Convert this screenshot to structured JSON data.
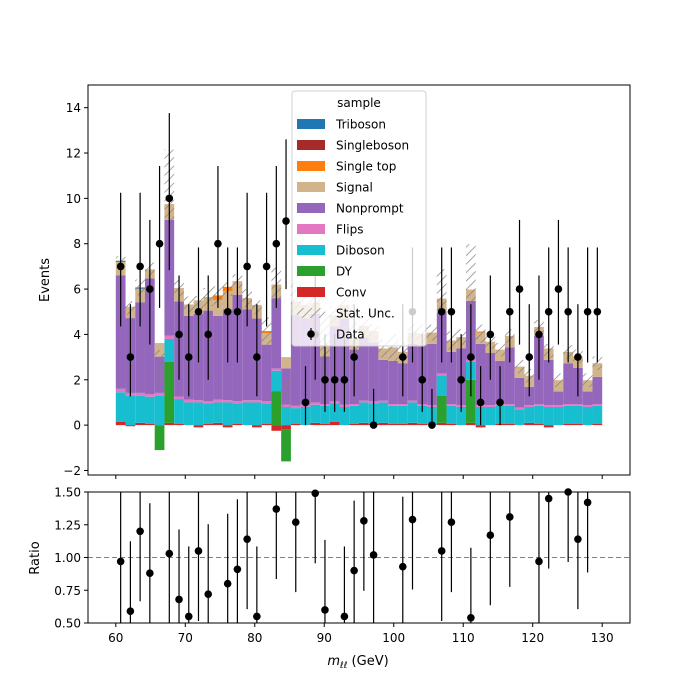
{
  "chart_data": {
    "type": "bar",
    "stacked": true,
    "x_range": [
      56,
      134
    ],
    "bin_width": 1.4,
    "x_ticks": [
      60,
      70,
      80,
      90,
      100,
      110,
      120,
      130
    ],
    "top_panel": {
      "ylabel": "Events",
      "ylim": [
        -2.2,
        15
      ],
      "y_ticks": [
        -2,
        0,
        2,
        4,
        6,
        8,
        10,
        12,
        14
      ]
    },
    "bottom_panel": {
      "ylabel": "Ratio",
      "ylim": [
        0.5,
        1.5
      ],
      "y_ticks": [
        0.5,
        0.75,
        1.0,
        1.25,
        1.5
      ],
      "y_tick_labels": [
        "0.50",
        "0.75",
        "1.00",
        "1.25",
        "1.50"
      ],
      "reference_line": 1.0
    },
    "xlabel_main": "m",
    "xlabel_sub": "ℓℓ",
    "xlabel_unit": " (GeV)",
    "legend": {
      "title": "sample",
      "placement": "top-center",
      "entries": [
        "Triboson",
        "Singleboson",
        "Single top",
        "Signal",
        "Nonprompt",
        "Flips",
        "Diboson",
        "DY",
        "Conv",
        "Stat. Unc.",
        "Data"
      ]
    },
    "bin_centers": [
      60.7,
      62.1,
      63.5,
      64.9,
      66.3,
      67.7,
      69.1,
      70.5,
      71.9,
      73.3,
      74.7,
      76.1,
      77.5,
      78.9,
      80.3,
      81.7,
      83.1,
      84.5,
      85.9,
      87.3,
      88.7,
      90.1,
      91.5,
      92.9,
      94.3,
      95.7,
      97.1,
      98.5,
      99.9,
      101.3,
      102.7,
      104.1,
      105.5,
      106.9,
      108.3,
      109.7,
      111.1,
      112.5,
      113.9,
      115.3,
      116.7,
      118.1,
      119.5,
      120.9,
      122.3,
      123.7,
      125.1,
      126.5,
      127.9,
      129.3
    ],
    "series": [
      {
        "name": "Conv",
        "color": "#d62728",
        "values": [
          0.15,
          -0.05,
          0.1,
          0.05,
          0,
          0.1,
          0.05,
          0,
          -0.1,
          0.05,
          0.1,
          -0.1,
          0.05,
          0,
          -0.1,
          0.05,
          -0.25,
          -0.2,
          0.05,
          0,
          0.1,
          0.05,
          0.15,
          0,
          0.05,
          0.1,
          0.05,
          0.1,
          0.05,
          0.05,
          0.1,
          0.05,
          0,
          0.1,
          0.05,
          0,
          0.1,
          -0.1,
          0,
          0.05,
          0.05,
          0,
          0.1,
          0.05,
          -0.1,
          0,
          0.05,
          0.05,
          0,
          0.05
        ]
      },
      {
        "name": "DY",
        "color": "#2ca02c",
        "values": [
          0,
          0,
          0,
          0,
          -1.1,
          2.7,
          0,
          0,
          0,
          0,
          0,
          0,
          0,
          0,
          0,
          0,
          1.5,
          -1.4,
          0,
          0,
          0,
          0,
          0,
          0,
          0,
          0,
          0,
          0,
          0,
          0,
          0,
          0,
          0,
          1.2,
          0,
          0,
          1.9,
          0,
          0,
          0,
          0,
          0,
          0,
          0,
          0,
          0,
          0,
          0,
          0,
          0
        ]
      },
      {
        "name": "Diboson",
        "color": "#17becf",
        "values": [
          1.3,
          1.3,
          1.2,
          1.2,
          1.3,
          1.0,
          1.1,
          1.0,
          1.0,
          0.9,
          0.9,
          1.0,
          0.9,
          1.0,
          1.0,
          0.9,
          0.9,
          0.8,
          0.7,
          0.8,
          0.8,
          0.8,
          0.8,
          0.8,
          0.8,
          0.9,
          0.9,
          0.9,
          0.8,
          0.8,
          0.9,
          0.8,
          0.8,
          0.9,
          0.8,
          0.8,
          0.8,
          0.8,
          0.8,
          0.8,
          0.8,
          0.7,
          0.7,
          0.8,
          0.8,
          0.8,
          0.8,
          0.8,
          0.8,
          0.8
        ]
      },
      {
        "name": "Flips",
        "color": "#e377c2",
        "values": [
          0.15,
          0.12,
          0.12,
          0.12,
          0.12,
          0.15,
          0.1,
          0.12,
          0.1,
          0.1,
          0.12,
          0.1,
          0.1,
          0.1,
          0.1,
          0.1,
          0.1,
          0.1,
          0.1,
          0.1,
          0.1,
          0.08,
          0.1,
          0.1,
          0.08,
          0.08,
          0.1,
          0.08,
          0.08,
          0.08,
          0.08,
          0.08,
          0.08,
          0.08,
          0.08,
          0.08,
          0.08,
          0.08,
          0.08,
          0.08,
          0.08,
          0.08,
          0.08,
          0.08,
          0.08,
          0.08,
          0.08,
          0.08,
          0.08,
          0.08
        ]
      },
      {
        "name": "Nonprompt",
        "color": "#9467bd",
        "values": [
          5.0,
          3.3,
          4.0,
          5.1,
          1.6,
          5.1,
          4.2,
          3.7,
          3.8,
          4.0,
          3.7,
          4.0,
          4.7,
          4.0,
          3.6,
          2.5,
          3.1,
          1.6,
          4.0,
          3.8,
          3.9,
          2.1,
          3.3,
          3.8,
          2.4,
          2.8,
          2.6,
          1.8,
          1.9,
          1.8,
          2.5,
          2.6,
          2.7,
          2.7,
          2.3,
          2.5,
          2.6,
          2.7,
          2.3,
          1.9,
          2.5,
          1.3,
          0.8,
          3.0,
          2.0,
          0.6,
          1.8,
          1.6,
          0.6,
          1.2
        ]
      },
      {
        "name": "Signal",
        "color": "#d2b48c",
        "values": [
          0.6,
          0.5,
          0.6,
          0.4,
          0.6,
          0.7,
          0.6,
          0.5,
          0.6,
          0.6,
          0.7,
          0.8,
          0.6,
          0.5,
          0.6,
          0.5,
          0.6,
          0.5,
          0.6,
          0.6,
          0.5,
          0.5,
          0.5,
          0.6,
          0.5,
          0.5,
          0.5,
          0.5,
          0.6,
          0.5,
          0.5,
          0.5,
          0.5,
          0.6,
          0.5,
          0.5,
          0.5,
          0.5,
          0.5,
          0.5,
          0.5,
          0.5,
          0.5,
          0.4,
          0.5,
          0.5,
          0.5,
          0.5,
          0.5,
          0.6
        ]
      },
      {
        "name": "Single top",
        "color": "#ff7f0e",
        "values": [
          0,
          0,
          0,
          0,
          0,
          0,
          0,
          0,
          0,
          0,
          0.2,
          0.2,
          0,
          0,
          0,
          0.1,
          0,
          0,
          0,
          0,
          0,
          0,
          0,
          0,
          0,
          0,
          0,
          0,
          0,
          0,
          0,
          0,
          0,
          0,
          0,
          0,
          0,
          0.05,
          0,
          0,
          0,
          0,
          0,
          0,
          0,
          0,
          0,
          0,
          0,
          0
        ]
      },
      {
        "name": "Singleboson",
        "color": "#a52a2a",
        "values": [
          0,
          0,
          0,
          0,
          0,
          0,
          0,
          0,
          0,
          0,
          0,
          0,
          0,
          0,
          0,
          0,
          0,
          0,
          0,
          0,
          0,
          0,
          0,
          0,
          0,
          0,
          0,
          0,
          0,
          0,
          0,
          0,
          0,
          0,
          0,
          0,
          0,
          0,
          0,
          0,
          0,
          0,
          0,
          0,
          0,
          0,
          0,
          0,
          0,
          0
        ]
      },
      {
        "name": "Triboson",
        "color": "#1f77b4",
        "values": [
          0.05,
          0,
          0.05,
          0,
          0,
          0,
          0,
          0,
          0,
          0,
          0,
          0,
          0,
          0,
          0,
          0,
          0,
          0,
          0,
          0,
          0,
          0,
          0,
          0,
          0,
          0,
          0,
          0,
          0,
          0,
          0,
          0,
          0,
          0,
          0,
          0,
          0,
          0,
          0,
          0,
          0,
          0,
          0,
          0,
          0,
          0,
          0,
          0,
          0,
          0
        ]
      }
    ],
    "stat_unc": [
      0.2,
      0.3,
      0.35,
      0.3,
      0.8,
      2.4,
      0.35,
      0.35,
      0.3,
      0.4,
      0.4,
      0.3,
      0.3,
      0.4,
      0.3,
      0.6,
      1.0,
      0.6,
      0.8,
      0.45,
      0.35,
      1.5,
      0.4,
      0.4,
      0.7,
      0.35,
      0.3,
      0.4,
      0.6,
      0.4,
      0.35,
      0.4,
      0.35,
      1.3,
      0.4,
      0.35,
      2.0,
      0.4,
      0.3,
      0.3,
      0.3,
      0.3,
      0.3,
      0.3,
      0.3,
      0.3,
      0.3,
      0.3,
      0.3,
      0.3
    ],
    "data_points": [
      {
        "x": 60.7,
        "y": 7
      },
      {
        "x": 62.1,
        "y": 3
      },
      {
        "x": 63.5,
        "y": 7
      },
      {
        "x": 64.9,
        "y": 6
      },
      {
        "x": 66.3,
        "y": 8
      },
      {
        "x": 67.7,
        "y": 10
      },
      {
        "x": 69.1,
        "y": 4
      },
      {
        "x": 70.5,
        "y": 3
      },
      {
        "x": 71.9,
        "y": 5
      },
      {
        "x": 73.3,
        "y": 4
      },
      {
        "x": 74.7,
        "y": 8
      },
      {
        "x": 76.1,
        "y": 5
      },
      {
        "x": 77.5,
        "y": 5
      },
      {
        "x": 78.9,
        "y": 7
      },
      {
        "x": 80.3,
        "y": 3
      },
      {
        "x": 81.7,
        "y": 7
      },
      {
        "x": 83.1,
        "y": 8
      },
      {
        "x": 84.5,
        "y": 9
      },
      {
        "x": 87.3,
        "y": 1
      },
      {
        "x": 88.7,
        "y": 4
      },
      {
        "x": 90.1,
        "y": 2
      },
      {
        "x": 91.5,
        "y": 2
      },
      {
        "x": 92.9,
        "y": 2
      },
      {
        "x": 94.3,
        "y": 3
      },
      {
        "x": 97.1,
        "y": 0
      },
      {
        "x": 101.3,
        "y": 3
      },
      {
        "x": 102.7,
        "y": 5
      },
      {
        "x": 104.1,
        "y": 2
      },
      {
        "x": 105.5,
        "y": 0
      },
      {
        "x": 106.9,
        "y": 5
      },
      {
        "x": 108.3,
        "y": 5
      },
      {
        "x": 109.7,
        "y": 2
      },
      {
        "x": 111.1,
        "y": 3
      },
      {
        "x": 112.5,
        "y": 1
      },
      {
        "x": 113.9,
        "y": 4
      },
      {
        "x": 115.3,
        "y": 1
      },
      {
        "x": 116.7,
        "y": 5
      },
      {
        "x": 118.1,
        "y": 6
      },
      {
        "x": 119.5,
        "y": 3
      },
      {
        "x": 120.9,
        "y": 4
      },
      {
        "x": 122.3,
        "y": 5
      },
      {
        "x": 123.7,
        "y": 6
      },
      {
        "x": 125.1,
        "y": 5
      },
      {
        "x": 126.5,
        "y": 3
      },
      {
        "x": 127.9,
        "y": 5
      },
      {
        "x": 129.3,
        "y": 5
      }
    ],
    "ratio_points": [
      {
        "x": 60.7,
        "y": 0.97
      },
      {
        "x": 62.1,
        "y": 0.59
      },
      {
        "x": 63.5,
        "y": 1.2
      },
      {
        "x": 64.9,
        "y": 0.88
      },
      {
        "x": 67.7,
        "y": 1.03
      },
      {
        "x": 69.1,
        "y": 0.68
      },
      {
        "x": 70.5,
        "y": 0.55
      },
      {
        "x": 71.9,
        "y": 1.05
      },
      {
        "x": 73.3,
        "y": 0.72
      },
      {
        "x": 76.1,
        "y": 0.8
      },
      {
        "x": 77.5,
        "y": 0.91
      },
      {
        "x": 78.9,
        "y": 1.14
      },
      {
        "x": 80.3,
        "y": 0.55
      },
      {
        "x": 83.1,
        "y": 1.37
      },
      {
        "x": 85.9,
        "y": 1.27
      },
      {
        "x": 88.7,
        "y": 1.49
      },
      {
        "x": 90.1,
        "y": 0.6
      },
      {
        "x": 92.9,
        "y": 0.55
      },
      {
        "x": 94.3,
        "y": 0.9
      },
      {
        "x": 95.7,
        "y": 1.28
      },
      {
        "x": 97.1,
        "y": 1.02
      },
      {
        "x": 101.3,
        "y": 0.93
      },
      {
        "x": 102.7,
        "y": 1.29
      },
      {
        "x": 106.9,
        "y": 1.05
      },
      {
        "x": 108.3,
        "y": 1.27
      },
      {
        "x": 111.1,
        "y": 0.54
      },
      {
        "x": 113.9,
        "y": 1.17
      },
      {
        "x": 116.7,
        "y": 1.31
      },
      {
        "x": 120.9,
        "y": 0.97
      },
      {
        "x": 122.3,
        "y": 1.45
      },
      {
        "x": 126.5,
        "y": 1.14
      },
      {
        "x": 127.9,
        "y": 1.42
      },
      {
        "x": 125.1,
        "y": 1.5
      }
    ]
  }
}
